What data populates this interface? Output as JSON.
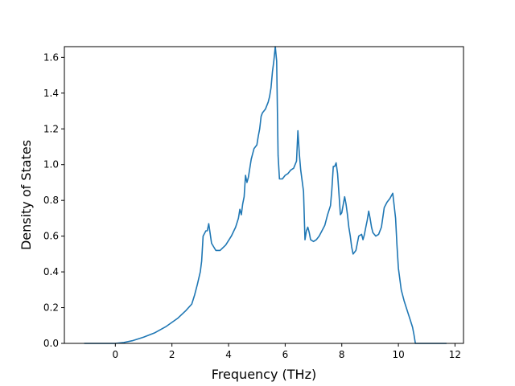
{
  "chart_data": {
    "type": "line",
    "title": "",
    "xlabel": "Frequency (THz)",
    "ylabel": "Density of States",
    "xlim": [
      -1.8,
      12.3
    ],
    "ylim": [
      0.0,
      1.66
    ],
    "xticks": [
      0,
      2,
      4,
      6,
      8,
      10,
      12
    ],
    "yticks": [
      0.0,
      0.2,
      0.4,
      0.6,
      0.8,
      1.0,
      1.2,
      1.4,
      1.6
    ],
    "xtick_labels": [
      "0",
      "2",
      "4",
      "6",
      "8",
      "10",
      "12"
    ],
    "ytick_labels": [
      "0.0",
      "0.2",
      "0.4",
      "0.6",
      "0.8",
      "1.0",
      "1.2",
      "1.4",
      "1.6"
    ],
    "grid": false,
    "series_color": "#1f77b4",
    "series": [
      {
        "x": [
          -1.1,
          -0.5,
          0.0,
          0.3,
          0.6,
          1.0,
          1.4,
          1.8,
          2.2,
          2.5,
          2.7,
          2.8,
          2.9,
          3.0,
          3.05,
          3.1,
          3.2,
          3.25,
          3.3,
          3.4,
          3.55,
          3.7,
          3.9,
          4.1,
          4.25,
          4.35,
          4.4,
          4.45,
          4.5,
          4.55,
          4.6,
          4.65,
          4.7,
          4.8,
          4.9,
          5.0,
          5.05,
          5.1,
          5.15,
          5.2,
          5.3,
          5.4,
          5.45,
          5.5,
          5.55,
          5.6,
          5.65,
          5.7,
          5.75,
          5.8,
          5.9,
          6.0,
          6.1,
          6.2,
          6.3,
          6.4,
          6.45,
          6.5,
          6.55,
          6.65,
          6.7,
          6.75,
          6.8,
          6.85,
          6.9,
          7.0,
          7.1,
          7.2,
          7.3,
          7.4,
          7.5,
          7.6,
          7.65,
          7.7,
          7.75,
          7.8,
          7.85,
          7.9,
          7.95,
          8.0,
          8.1,
          8.15,
          8.2,
          8.25,
          8.3,
          8.35,
          8.4,
          8.45,
          8.5,
          8.6,
          8.7,
          8.75,
          8.8,
          8.85,
          8.9,
          8.95,
          9.0,
          9.05,
          9.1,
          9.2,
          9.3,
          9.4,
          9.5,
          9.6,
          9.7,
          9.8,
          9.9,
          9.95,
          10.0,
          10.1,
          10.2,
          10.3,
          10.4,
          10.5,
          10.55,
          10.6,
          10.65,
          10.7,
          11.0,
          11.5,
          11.7
        ],
        "y": [
          0.0,
          0.0,
          0.0,
          0.005,
          0.015,
          0.035,
          0.06,
          0.095,
          0.14,
          0.185,
          0.22,
          0.27,
          0.33,
          0.4,
          0.46,
          0.6,
          0.63,
          0.63,
          0.67,
          0.56,
          0.52,
          0.52,
          0.55,
          0.6,
          0.65,
          0.7,
          0.75,
          0.72,
          0.78,
          0.82,
          0.94,
          0.9,
          0.93,
          1.03,
          1.09,
          1.11,
          1.16,
          1.2,
          1.27,
          1.29,
          1.31,
          1.35,
          1.38,
          1.43,
          1.52,
          1.58,
          1.66,
          1.58,
          1.05,
          0.92,
          0.92,
          0.94,
          0.95,
          0.97,
          0.98,
          1.02,
          1.19,
          1.06,
          0.97,
          0.85,
          0.58,
          0.63,
          0.65,
          0.62,
          0.58,
          0.57,
          0.58,
          0.6,
          0.63,
          0.66,
          0.72,
          0.77,
          0.86,
          0.99,
          0.99,
          1.01,
          0.95,
          0.84,
          0.72,
          0.73,
          0.82,
          0.78,
          0.72,
          0.65,
          0.6,
          0.54,
          0.5,
          0.51,
          0.52,
          0.6,
          0.61,
          0.58,
          0.61,
          0.65,
          0.69,
          0.74,
          0.7,
          0.65,
          0.62,
          0.6,
          0.61,
          0.65,
          0.76,
          0.79,
          0.81,
          0.84,
          0.7,
          0.55,
          0.42,
          0.3,
          0.24,
          0.19,
          0.14,
          0.09,
          0.05,
          0.0,
          0.0,
          0.0,
          0.0,
          0.0,
          0.0
        ]
      }
    ]
  }
}
